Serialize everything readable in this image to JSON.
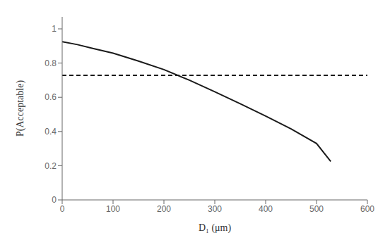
{
  "chart_data": {
    "type": "line",
    "x_label": "D₁ (μm)",
    "y_label": "P(Acceptable)",
    "series": [
      {
        "x": [
          0,
          30,
          60,
          100,
          150,
          200,
          250,
          300,
          350,
          400,
          450,
          500,
          528
        ],
        "values": [
          0.925,
          0.908,
          0.886,
          0.858,
          0.812,
          0.762,
          0.7,
          0.632,
          0.562,
          0.49,
          0.415,
          0.33,
          0.225
        ],
        "color": "#1a1a1a",
        "line_style": "solid"
      },
      {
        "x": [
          0,
          600
        ],
        "values": [
          0.728,
          0.728
        ],
        "color": "#1a1a1a",
        "line_style": "dashed"
      }
    ],
    "xlim": [
      0,
      600
    ],
    "ylim": [
      0,
      1.07
    ],
    "xticks": [
      0,
      100,
      200,
      300,
      400,
      500,
      600
    ],
    "yticks": [
      0,
      0.2,
      0.4,
      0.6,
      0.8,
      1
    ],
    "grid": false
  }
}
